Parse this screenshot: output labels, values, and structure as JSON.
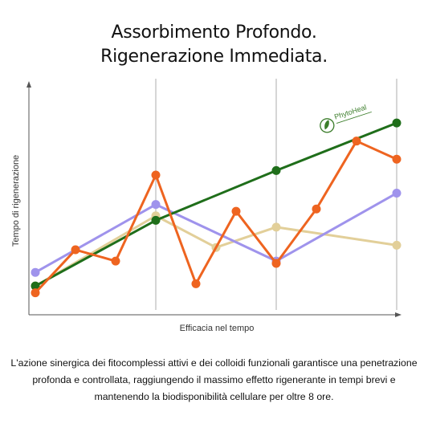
{
  "headline": {
    "line1": "Assorbimento Profondo.",
    "line2": "Rigenerazione Immediata."
  },
  "logo": {
    "brand": "PhytoHeal",
    "icon": "leaf-circle-icon",
    "color": "#3b7d2a"
  },
  "caption": {
    "line1": "L'azione sinergica dei fitocomplessi attivi e dei colloidi funzionali garantisce una penetrazione",
    "line2": "profonda e controllata, raggiungendo il massimo effetto rigenerante in tempi brevi e",
    "line3": "mantenendo la biodisponibilità cellulare per oltre 8 ore."
  },
  "chart_data": {
    "type": "line",
    "xlabel": "Efficacia nel tempo",
    "ylabel": "Tempo di rigenerazione",
    "xlim": [
      0,
      9
    ],
    "ylim": [
      0,
      10
    ],
    "grid": "vertical",
    "series": [
      {
        "color": "#1f6e1a",
        "x": [
          0,
          3,
          6,
          9
        ],
        "values": [
          1.2,
          4.1,
          6.3,
          8.4
        ]
      },
      {
        "color": "#ee6420",
        "x": [
          0,
          1,
          2,
          3,
          4,
          5,
          6,
          7,
          8,
          9
        ],
        "values": [
          0.9,
          2.8,
          2.3,
          6.1,
          1.3,
          4.5,
          2.2,
          4.6,
          7.6,
          6.8
        ]
      },
      {
        "color": "#9f93ec",
        "x": [
          0,
          3,
          6,
          9
        ],
        "values": [
          1.8,
          4.8,
          2.3,
          5.3
        ]
      },
      {
        "color": "#e2cf99",
        "x": [
          0,
          3,
          4.5,
          6,
          9
        ],
        "values": [
          1.2,
          4.3,
          2.9,
          3.8,
          3.0
        ]
      }
    ]
  }
}
